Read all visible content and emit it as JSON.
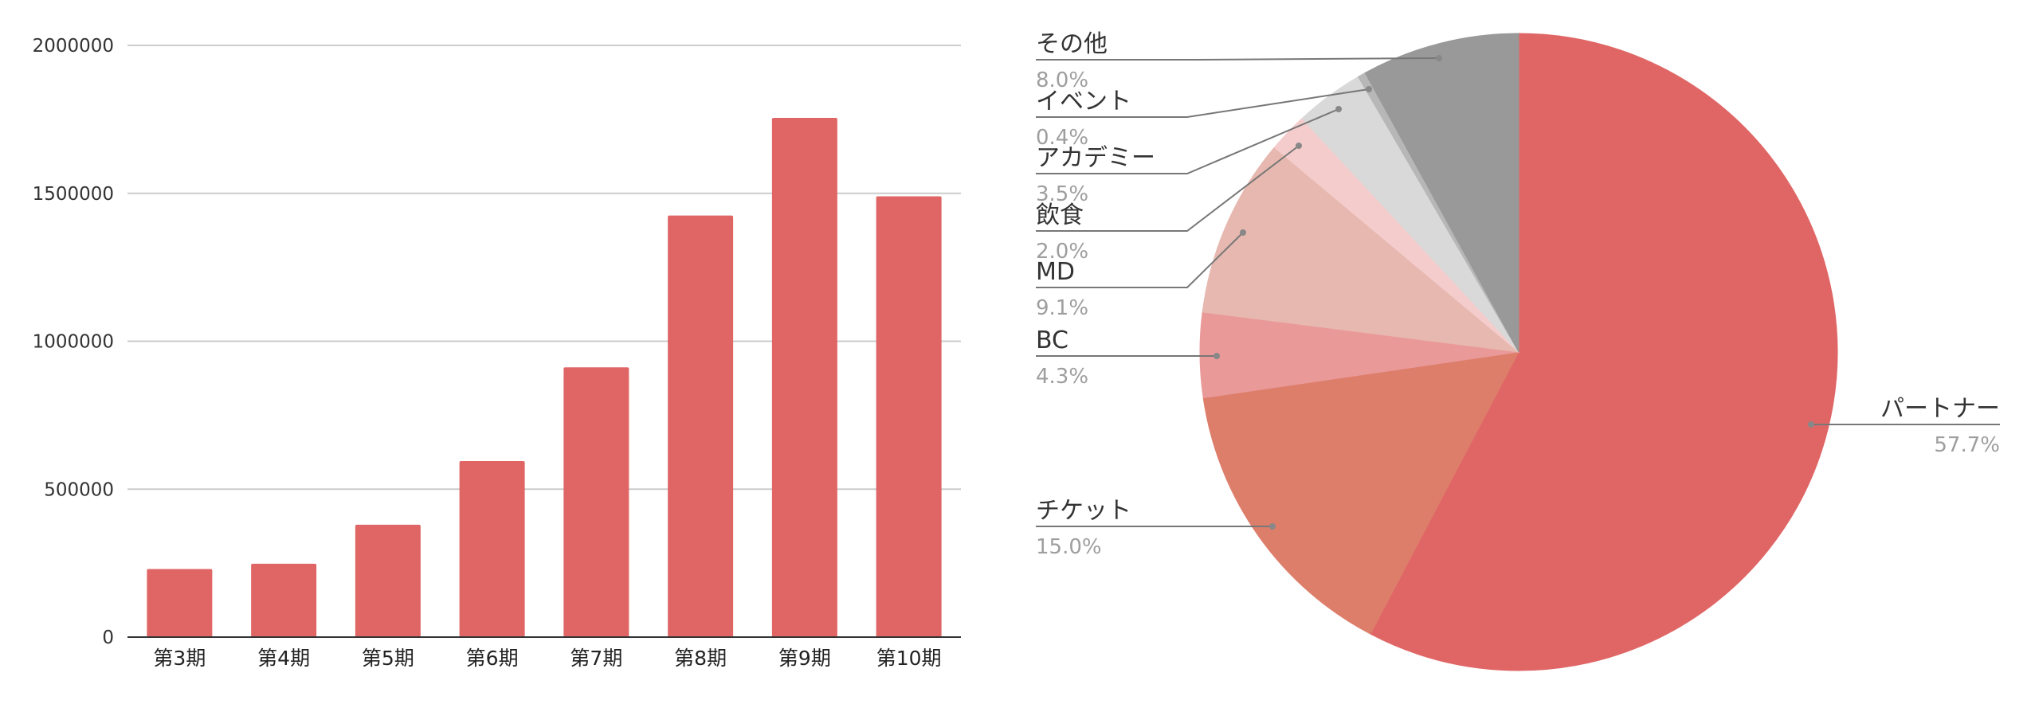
{
  "chart_data": [
    {
      "type": "bar",
      "categories": [
        "第3期",
        "第4期",
        "第5期",
        "第6期",
        "第7期",
        "第8期",
        "第9期",
        "第10期"
      ],
      "values": [
        230000,
        248000,
        380000,
        595000,
        912000,
        1425000,
        1755000,
        1490000
      ],
      "ylim": [
        0,
        2000000
      ],
      "yticks": [
        "0",
        "500000",
        "1000000",
        "1500000",
        "2000000"
      ],
      "grid": true,
      "color": "#e06666"
    },
    {
      "type": "pie",
      "slices": [
        {
          "label": "パートナー",
          "percent_label": "57.7%",
          "value": 57.7,
          "color": "#e06666"
        },
        {
          "label": "チケット",
          "percent_label": "15.0%",
          "value": 15.0,
          "color": "#dd7e6b"
        },
        {
          "label": "BC",
          "percent_label": "4.3%",
          "value": 4.3,
          "color": "#ea9999"
        },
        {
          "label": "MD",
          "percent_label": "9.1%",
          "value": 9.1,
          "color": "#e6b8af"
        },
        {
          "label": "飲食",
          "percent_label": "2.0%",
          "value": 2.0,
          "color": "#f4cccc"
        },
        {
          "label": "アカデミー",
          "percent_label": "3.5%",
          "value": 3.5,
          "color": "#d9d9d9"
        },
        {
          "label": "イベント",
          "percent_label": "0.4%",
          "value": 0.4,
          "color": "#b7b7b7"
        },
        {
          "label": "その他",
          "percent_label": "8.0%",
          "value": 8.0,
          "color": "#999999"
        }
      ]
    }
  ]
}
